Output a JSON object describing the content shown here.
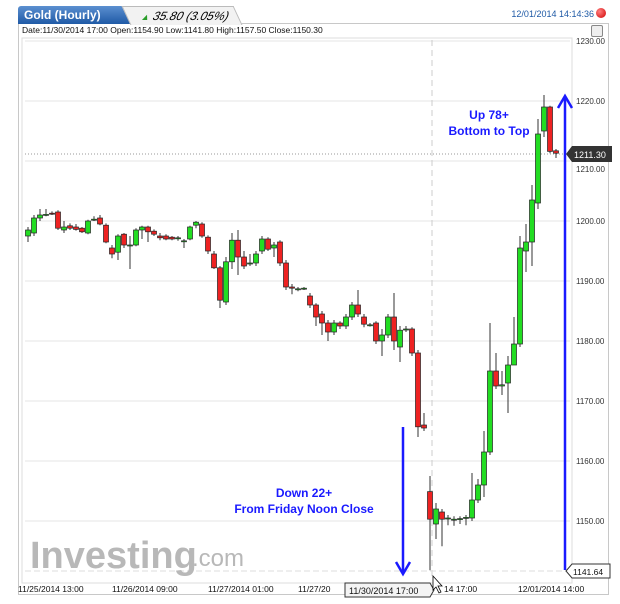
{
  "header": {
    "title": "Gold (Hourly)",
    "change": "35.80 (3.05%)",
    "timestamp": "12/01/2014 14:14:36",
    "change_icon": "triangle-up-icon",
    "status_icon": "record-dot-icon"
  },
  "info_bar": {
    "text": "Date:11/30/2014 17:00 Open:1154.90 Low:1141.80 High:1157.50 Close:1150.30"
  },
  "colors": {
    "up": "#22dd22",
    "down": "#ee2222",
    "annotation": "#1a1aff",
    "tab": "#1f5aa6"
  },
  "logo": {
    "text": "Investing",
    "suffix": ".com"
  },
  "chart_data": {
    "type": "candlestick",
    "ylim": [
      1140,
      1230
    ],
    "y_ticks": [
      "1150.00",
      "1160.00",
      "1170.00",
      "1180.00",
      "1190.00",
      "1200.00",
      "1210.00",
      "1220.00",
      "1230.00"
    ],
    "x_ticks": [
      "11/25/2014 13:00",
      "11/26/2014 09:00",
      "11/27/2014 01:00",
      "11/27/20",
      "12/01/2014 14:00"
    ],
    "x_tick_partial": "14 17:00",
    "crosshair_label": "11/30/2014 17:00",
    "last_price_label": "1211.30",
    "low_price_label": "1141.64",
    "grid": true,
    "annotations": [
      {
        "text1": "Up 78+",
        "text2": "Bottom to Top"
      },
      {
        "text1": "Down 22+",
        "text2": "From Friday Noon Close"
      }
    ],
    "ohlc": [
      [
        1197.5,
        1199,
        1196.5,
        1198.5
      ],
      [
        1198,
        1201,
        1197.5,
        1200.5
      ],
      [
        1200.5,
        1202,
        1200,
        1201
      ],
      [
        1201,
        1202,
        1200.8,
        1201.1
      ],
      [
        1201.3,
        1201.6,
        1201,
        1201.2
      ],
      [
        1201.5,
        1201.8,
        1198.5,
        1198.8
      ],
      [
        1198.5,
        1200,
        1198,
        1199
      ],
      [
        1199.2,
        1199.6,
        1198.5,
        1198.8
      ],
      [
        1199,
        1199.5,
        1198.4,
        1198.6
      ],
      [
        1198.8,
        1199,
        1198,
        1198.2
      ],
      [
        1198,
        1200.2,
        1197.8,
        1200
      ],
      [
        1200.3,
        1200.8,
        1200,
        1200.3
      ],
      [
        1200.5,
        1201,
        1199.3,
        1199.5
      ],
      [
        1199.3,
        1199.6,
        1196.3,
        1196.5
      ],
      [
        1195.5,
        1196,
        1193.8,
        1194.5
      ],
      [
        1194.8,
        1197.8,
        1193.5,
        1197.5
      ],
      [
        1197.8,
        1198,
        1195.5,
        1196
      ],
      [
        1196,
        1197.5,
        1192,
        1196
      ],
      [
        1196,
        1198.8,
        1195.8,
        1198.5
      ],
      [
        1198.5,
        1199.2,
        1197,
        1199
      ],
      [
        1199,
        1199.2,
        1196.5,
        1198.2
      ],
      [
        1198.3,
        1198.6,
        1197.5,
        1197.8
      ],
      [
        1197.5,
        1198,
        1196.8,
        1197.2
      ],
      [
        1197.5,
        1197.8,
        1196.8,
        1197
      ],
      [
        1197.3,
        1197.5,
        1196.8,
        1197
      ],
      [
        1197.2,
        1197.5,
        1196.7,
        1197.2
      ],
      [
        1196.7,
        1197,
        1195.5,
        1196.7
      ],
      [
        1197,
        1199.2,
        1196.8,
        1199
      ],
      [
        1199.3,
        1200,
        1198.8,
        1199.8
      ],
      [
        1199.5,
        1199.8,
        1197.2,
        1197.5
      ],
      [
        1197.3,
        1197.6,
        1194.5,
        1195
      ],
      [
        1194.5,
        1195,
        1192,
        1192.2
      ],
      [
        1192.2,
        1192.5,
        1185.5,
        1186.8
      ],
      [
        1186.5,
        1194,
        1186,
        1193.2
      ],
      [
        1193.2,
        1198,
        1192,
        1196.8
      ],
      [
        1196.8,
        1198.5,
        1191,
        1194
      ],
      [
        1194,
        1195,
        1192,
        1192.5
      ],
      [
        1193,
        1194.5,
        1192.5,
        1193
      ],
      [
        1193,
        1195,
        1192.5,
        1194.5
      ],
      [
        1195,
        1197.5,
        1194.5,
        1197
      ],
      [
        1197,
        1197.3,
        1195,
        1195.3
      ],
      [
        1195.5,
        1196.5,
        1194,
        1196
      ],
      [
        1196.5,
        1196.8,
        1192.5,
        1193
      ],
      [
        1193,
        1193.5,
        1188.5,
        1189
      ],
      [
        1189,
        1189.5,
        1187.8,
        1188.8
      ],
      [
        1188.7,
        1189,
        1188.3,
        1188.7
      ],
      [
        1188.8,
        1189,
        1188.5,
        1188.8
      ],
      [
        1187.5,
        1188,
        1185.5,
        1186
      ],
      [
        1186,
        1186.3,
        1182.5,
        1184
      ],
      [
        1184.5,
        1185,
        1181,
        1183
      ],
      [
        1183,
        1183.5,
        1180,
        1181.5
      ],
      [
        1181.5,
        1183.5,
        1181,
        1183
      ],
      [
        1183,
        1183.3,
        1182,
        1182.5
      ],
      [
        1182.5,
        1184.5,
        1182,
        1184
      ],
      [
        1184,
        1186.5,
        1183.5,
        1186
      ],
      [
        1186,
        1188.5,
        1184,
        1184.5
      ],
      [
        1184,
        1184.5,
        1182.3,
        1182.8
      ],
      [
        1182.7,
        1183,
        1182.4,
        1182.7
      ],
      [
        1183,
        1183.3,
        1179.5,
        1180
      ],
      [
        1180,
        1182,
        1177.5,
        1181
      ],
      [
        1181,
        1184.5,
        1180.5,
        1184
      ],
      [
        1184,
        1188,
        1178.5,
        1180
      ],
      [
        1179,
        1182.5,
        1176.5,
        1181.8
      ],
      [
        1182,
        1182.5,
        1181.5,
        1182
      ],
      [
        1182,
        1182.3,
        1177.5,
        1178
      ],
      [
        1178,
        1178.5,
        1164,
        1165.7
      ],
      [
        1166,
        1168,
        1165,
        1165.5
      ],
      [
        1154.9,
        1157.5,
        1141.8,
        1150.3
      ],
      [
        1149.5,
        1153,
        1147,
        1152
      ],
      [
        1151.5,
        1152,
        1145.8,
        1150.3
      ],
      [
        1150.5,
        1151,
        1149.3,
        1150.5
      ],
      [
        1150.3,
        1150.8,
        1149.2,
        1150.3
      ],
      [
        1150.4,
        1150.8,
        1149.5,
        1150.4
      ],
      [
        1150.5,
        1151,
        1149.3,
        1150.6
      ],
      [
        1150.5,
        1158,
        1150,
        1153.5
      ],
      [
        1153.5,
        1157,
        1153,
        1156
      ],
      [
        1156,
        1165,
        1154,
        1161.5
      ],
      [
        1161.5,
        1183,
        1161,
        1175
      ],
      [
        1175,
        1178,
        1172,
        1172.5
      ],
      [
        1172.5,
        1175,
        1171,
        1172.7
      ],
      [
        1173,
        1177.5,
        1168,
        1176
      ],
      [
        1176,
        1184,
        1176,
        1179.5
      ],
      [
        1179.5,
        1197.5,
        1179,
        1195.5
      ],
      [
        1195,
        1199.5,
        1191.5,
        1196.5
      ],
      [
        1196.5,
        1206,
        1192.5,
        1203.5
      ],
      [
        1203,
        1217,
        1202,
        1214.5
      ],
      [
        1215,
        1221,
        1214,
        1219
      ],
      [
        1219,
        1219.2,
        1211.3,
        1211.6
      ],
      [
        1211.7,
        1212,
        1210.5,
        1211.3
      ]
    ]
  }
}
